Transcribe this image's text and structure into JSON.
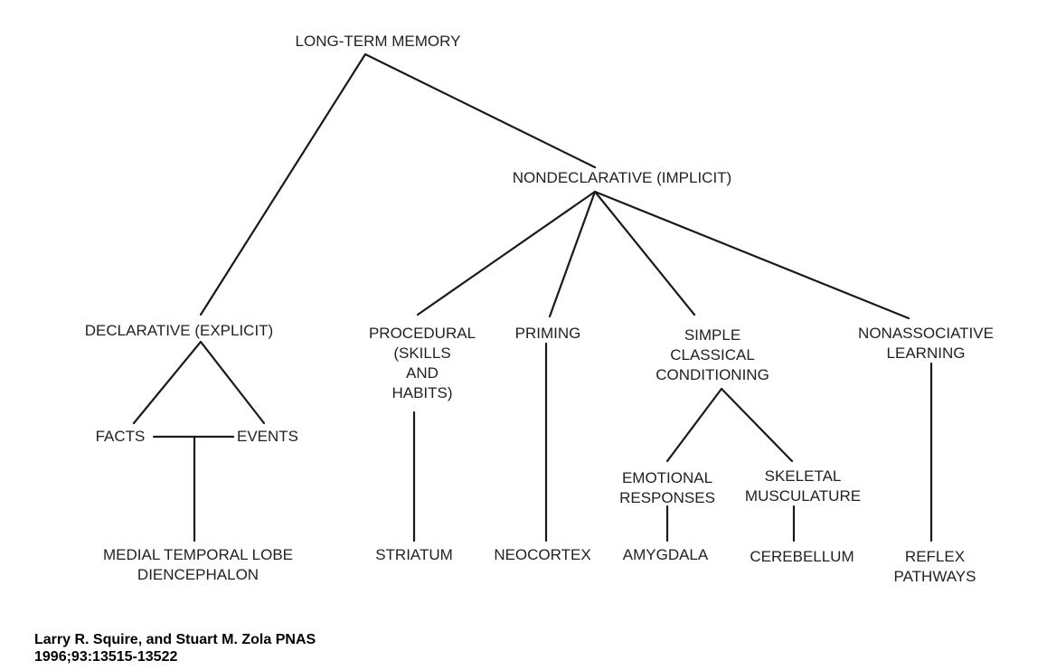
{
  "nodes": {
    "long_term_memory": [
      "LONG-TERM MEMORY"
    ],
    "nondeclarative": [
      "NONDECLARATIVE (IMPLICIT)"
    ],
    "declarative": [
      "DECLARATIVE (EXPLICIT)"
    ],
    "procedural": [
      "PROCEDURAL",
      "(SKILLS",
      "AND",
      "HABITS)"
    ],
    "priming": [
      "PRIMING"
    ],
    "simple_classical": [
      "SIMPLE",
      "CLASSICAL",
      "CONDITIONING"
    ],
    "nonassociative": [
      "NONASSOCIATIVE",
      "LEARNING"
    ],
    "facts": [
      "FACTS"
    ],
    "events": [
      "EVENTS"
    ],
    "emotional": [
      "EMOTIONAL",
      "RESPONSES"
    ],
    "skeletal": [
      "SKELETAL",
      "MUSCULATURE"
    ],
    "medial_temporal": [
      "MEDIAL TEMPORAL LOBE",
      "DIENCEPHALON"
    ],
    "striatum": [
      "STRIATUM"
    ],
    "neocortex": [
      "NEOCORTEX"
    ],
    "amygdala": [
      "AMYGDALA"
    ],
    "cerebellum": [
      "CEREBELLUM"
    ],
    "reflex": [
      "REFLEX",
      "PATHWAYS"
    ]
  },
  "citation": {
    "line1": "Larry R. Squire, and Stuart M. Zola PNAS",
    "line2": "1996;93:13515-13522"
  }
}
